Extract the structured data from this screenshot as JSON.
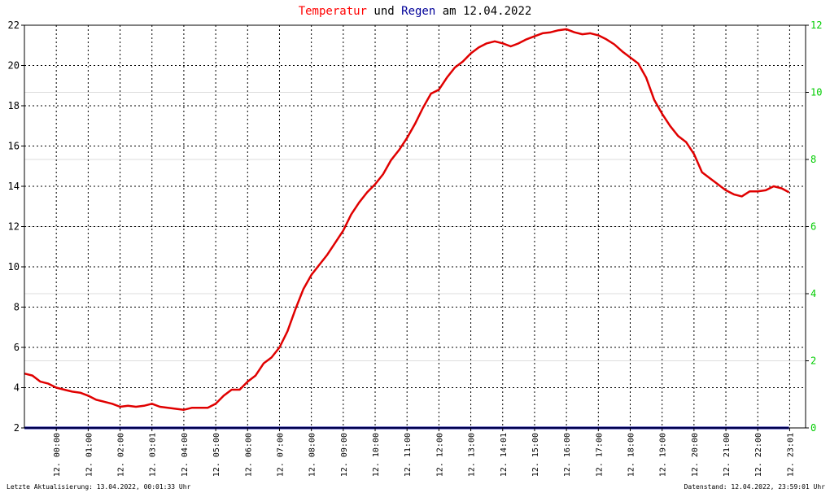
{
  "header": {
    "title_part1": "Temperatur",
    "title_part2": " und ",
    "title_part3": "Regen",
    "title_part4": " am 12.04.2022"
  },
  "footer": {
    "left": "Letzte Aktualisierung: 13.04.2022, 00:01:33 Uhr",
    "right": "Datenstand: 12.04.2022, 23:59:01 Uhr"
  },
  "colors": {
    "temperature": "#e00000",
    "rain": "#000099",
    "right_axis": "#00cc00",
    "title_temp": "#ff0000",
    "title_rain": "#000099"
  },
  "chart_data": {
    "type": "line",
    "title": "Temperatur und Regen am 12.04.2022",
    "x_tick_labels": [
      "12. 00:00",
      "12. 01:00",
      "12. 02:00",
      "12. 03:01",
      "12. 04:00",
      "12. 05:00",
      "12. 06:00",
      "12. 07:00",
      "12. 08:00",
      "12. 09:00",
      "12. 10:00",
      "12. 11:00",
      "12. 12:00",
      "12. 13:00",
      "12. 14:01",
      "12. 15:00",
      "12. 16:00",
      "12. 17:00",
      "12. 18:00",
      "12. 19:00",
      "12. 20:00",
      "12. 21:00",
      "12. 22:00",
      "12. 23:01"
    ],
    "x_range_hours": [
      0,
      24.5
    ],
    "y_left": {
      "ylim": [
        2,
        22
      ],
      "ticks": [
        2,
        4,
        6,
        8,
        10,
        12,
        14,
        16,
        18,
        20,
        22
      ]
    },
    "y_right": {
      "ylim": [
        0,
        12
      ],
      "ticks": [
        0,
        2,
        4,
        6,
        8,
        10,
        12
      ]
    },
    "grid": true,
    "series": [
      {
        "name": "Temperatur",
        "axis": "left",
        "x": [
          0,
          0.25,
          0.5,
          0.75,
          1,
          1.25,
          1.5,
          1.75,
          2,
          2.25,
          2.5,
          2.75,
          3,
          3.25,
          3.5,
          3.75,
          4,
          4.25,
          4.5,
          4.75,
          5,
          5.25,
          5.5,
          5.75,
          6,
          6.25,
          6.5,
          6.75,
          7,
          7.25,
          7.5,
          7.75,
          8,
          8.25,
          8.5,
          8.75,
          9,
          9.25,
          9.5,
          9.75,
          10,
          10.25,
          10.5,
          10.75,
          11,
          11.25,
          11.5,
          11.75,
          12,
          12.25,
          12.5,
          12.75,
          13,
          13.25,
          13.5,
          13.75,
          14,
          14.25,
          14.5,
          14.75,
          15,
          15.25,
          15.5,
          15.75,
          16,
          16.25,
          16.5,
          16.75,
          17,
          17.25,
          17.5,
          17.75,
          18,
          18.25,
          18.5,
          18.75,
          19,
          19.25,
          19.5,
          19.75,
          20,
          20.25,
          20.5,
          20.75,
          21,
          21.25,
          21.5,
          21.75,
          22,
          22.25,
          22.5,
          22.75,
          23,
          23.25,
          23.5,
          23.75,
          23.98
        ],
        "values": [
          4.7,
          4.6,
          4.3,
          4.2,
          4.0,
          3.9,
          3.8,
          3.75,
          3.6,
          3.4,
          3.3,
          3.2,
          3.05,
          3.1,
          3.05,
          3.1,
          3.2,
          3.05,
          3.0,
          2.95,
          2.9,
          3.0,
          3.0,
          3.0,
          3.2,
          3.6,
          3.9,
          3.9,
          4.3,
          4.6,
          5.2,
          5.5,
          6.0,
          6.8,
          7.9,
          8.9,
          9.6,
          10.1,
          10.6,
          11.2,
          11.8,
          12.6,
          13.2,
          13.7,
          14.1,
          14.6,
          15.3,
          15.8,
          16.4,
          17.1,
          17.9,
          18.6,
          18.8,
          19.4,
          19.9,
          20.2,
          20.6,
          20.9,
          21.1,
          21.2,
          21.1,
          20.95,
          21.1,
          21.3,
          21.45,
          21.6,
          21.65,
          21.75,
          21.8,
          21.65,
          21.55,
          21.6,
          21.5,
          21.3,
          21.05,
          20.7,
          20.4,
          20.1,
          19.4,
          18.3,
          17.6,
          17.0,
          16.5,
          16.2,
          15.6,
          14.7,
          14.4,
          14.1,
          13.8,
          13.6,
          13.5,
          13.75,
          13.75,
          13.8,
          14.0,
          13.9,
          13.7
        ],
        "color": "#e00000"
      },
      {
        "name": "Regen",
        "axis": "right",
        "x": [
          0,
          23.98
        ],
        "values": [
          0,
          0
        ],
        "color": "#000099"
      }
    ]
  }
}
